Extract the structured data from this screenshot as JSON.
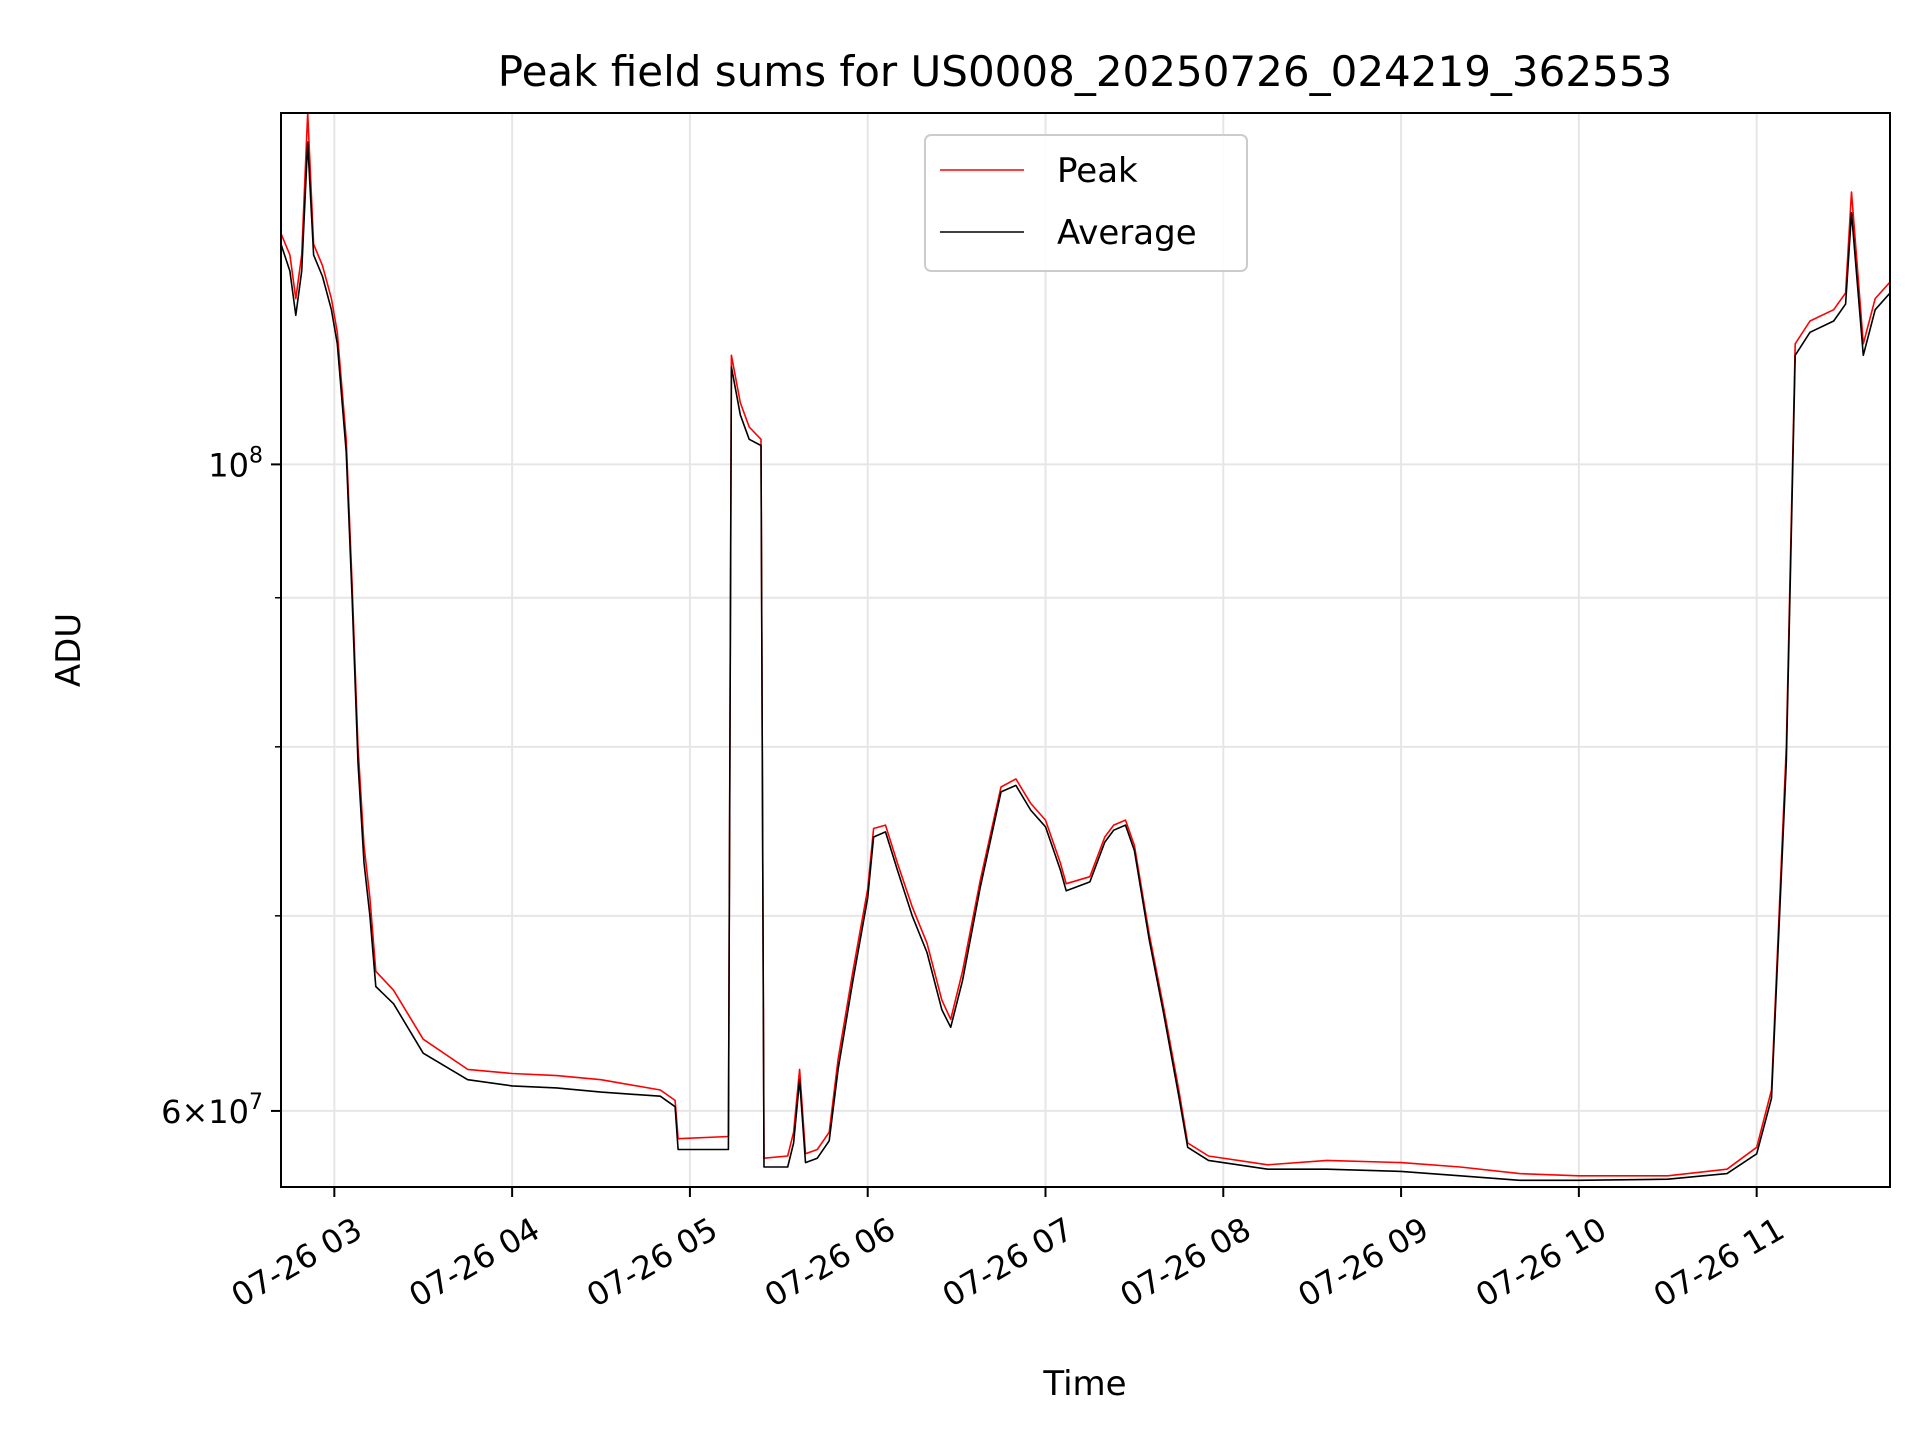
{
  "chart_data": {
    "type": "line",
    "title": "Peak field sums for US0008_20250726_024219_362553",
    "xlabel": "Time",
    "ylabel": "ADU",
    "y_scale": "log",
    "ylim": [
      56500000,
      132000000
    ],
    "xlim": [
      "07-26 02:42",
      "07-26 11:45"
    ],
    "x_ticks": [
      {
        "t": "07-26 03:00",
        "label": "07-26 03"
      },
      {
        "t": "07-26 04:00",
        "label": "07-26 04"
      },
      {
        "t": "07-26 05:00",
        "label": "07-26 05"
      },
      {
        "t": "07-26 06:00",
        "label": "07-26 06"
      },
      {
        "t": "07-26 07:00",
        "label": "07-26 07"
      },
      {
        "t": "07-26 08:00",
        "label": "07-26 08"
      },
      {
        "t": "07-26 09:00",
        "label": "07-26 09"
      },
      {
        "t": "07-26 10:00",
        "label": "07-26 10"
      },
      {
        "t": "07-26 11:00",
        "label": "07-26 11"
      }
    ],
    "y_ticks": [
      {
        "value": 60000000,
        "base": "6×10",
        "exp": "7"
      },
      {
        "value": 100000000,
        "base": "10",
        "exp": "8"
      }
    ],
    "y_minor_ticks": [
      70000000,
      80000000,
      90000000
    ],
    "grid": true,
    "legend": {
      "position": "top-center",
      "entries": [
        "Peak",
        "Average"
      ]
    },
    "series": [
      {
        "name": "Peak",
        "color": "#ff0000",
        "points": [
          [
            "07-26 02:42",
            120000000
          ],
          [
            "07-26 02:45",
            118000000
          ],
          [
            "07-26 02:47",
            114000000
          ],
          [
            "07-26 02:49",
            118000000
          ],
          [
            "07-26 02:51",
            132000000
          ],
          [
            "07-26 02:53",
            119000000
          ],
          [
            "07-26 02:56",
            117000000
          ],
          [
            "07-26 02:59",
            114000000
          ],
          [
            "07-26 03:01",
            111000000
          ],
          [
            "07-26 03:04",
            102000000
          ],
          [
            "07-26 03:06",
            91000000
          ],
          [
            "07-26 03:08",
            80000000
          ],
          [
            "07-26 03:10",
            74000000
          ],
          [
            "07-26 03:12",
            71000000
          ],
          [
            "07-26 03:14",
            67000000
          ],
          [
            "07-26 03:20",
            66000000
          ],
          [
            "07-26 03:30",
            63500000
          ],
          [
            "07-26 03:45",
            62000000
          ],
          [
            "07-26 04:00",
            61800000
          ],
          [
            "07-26 04:15",
            61700000
          ],
          [
            "07-26 04:30",
            61500000
          ],
          [
            "07-26 04:50",
            61000000
          ],
          [
            "07-26 04:55",
            60500000
          ],
          [
            "07-26 04:56",
            58700000
          ],
          [
            "07-26 05:13",
            58800000
          ],
          [
            "07-26 05:14",
            109000000
          ],
          [
            "07-26 05:17",
            105000000
          ],
          [
            "07-26 05:20",
            103000000
          ],
          [
            "07-26 05:24",
            102000000
          ],
          [
            "07-26 05:25",
            57800000
          ],
          [
            "07-26 05:33",
            57900000
          ],
          [
            "07-26 05:35",
            59000000
          ],
          [
            "07-26 05:37",
            62000000
          ],
          [
            "07-26 05:39",
            58000000
          ],
          [
            "07-26 05:43",
            58200000
          ],
          [
            "07-26 05:47",
            59000000
          ],
          [
            "07-26 05:50",
            62500000
          ],
          [
            "07-26 05:55",
            67000000
          ],
          [
            "07-26 06:00",
            71500000
          ],
          [
            "07-26 06:02",
            75000000
          ],
          [
            "07-26 06:06",
            75200000
          ],
          [
            "07-26 06:10",
            73000000
          ],
          [
            "07-26 06:15",
            70500000
          ],
          [
            "07-26 06:20",
            68500000
          ],
          [
            "07-26 06:25",
            65500000
          ],
          [
            "07-26 06:28",
            64500000
          ],
          [
            "07-26 06:32",
            67000000
          ],
          [
            "07-26 06:38",
            72000000
          ],
          [
            "07-26 06:45",
            77500000
          ],
          [
            "07-26 06:50",
            78000000
          ],
          [
            "07-26 06:55",
            76500000
          ],
          [
            "07-26 07:00",
            75500000
          ],
          [
            "07-26 07:05",
            73000000
          ],
          [
            "07-26 07:07",
            71800000
          ],
          [
            "07-26 07:15",
            72200000
          ],
          [
            "07-26 07:20",
            74500000
          ],
          [
            "07-26 07:23",
            75200000
          ],
          [
            "07-26 07:27",
            75500000
          ],
          [
            "07-26 07:30",
            74000000
          ],
          [
            "07-26 07:35",
            69000000
          ],
          [
            "07-26 07:40",
            65000000
          ],
          [
            "07-26 07:45",
            61000000
          ],
          [
            "07-26 07:48",
            58500000
          ],
          [
            "07-26 07:55",
            57900000
          ],
          [
            "07-26 08:15",
            57500000
          ],
          [
            "07-26 08:35",
            57700000
          ],
          [
            "07-26 09:00",
            57600000
          ],
          [
            "07-26 09:20",
            57400000
          ],
          [
            "07-26 09:40",
            57100000
          ],
          [
            "07-26 10:00",
            57000000
          ],
          [
            "07-26 10:30",
            57000000
          ],
          [
            "07-26 10:50",
            57300000
          ],
          [
            "07-26 11:00",
            58300000
          ],
          [
            "07-26 11:05",
            61000000
          ],
          [
            "07-26 11:10",
            80000000
          ],
          [
            "07-26 11:13",
            110000000
          ],
          [
            "07-26 11:18",
            112000000
          ],
          [
            "07-26 11:26",
            113000000
          ],
          [
            "07-26 11:30",
            114500000
          ],
          [
            "07-26 11:32",
            124000000
          ],
          [
            "07-26 11:36",
            110000000
          ],
          [
            "07-26 11:40",
            114000000
          ],
          [
            "07-26 11:45",
            115500000
          ]
        ]
      },
      {
        "name": "Average",
        "color": "#000000",
        "points": [
          [
            "07-26 02:42",
            119000000
          ],
          [
            "07-26 02:45",
            116500000
          ],
          [
            "07-26 02:47",
            112500000
          ],
          [
            "07-26 02:49",
            116500000
          ],
          [
            "07-26 02:51",
            129000000
          ],
          [
            "07-26 02:53",
            118000000
          ],
          [
            "07-26 02:56",
            116000000
          ],
          [
            "07-26 02:59",
            113000000
          ],
          [
            "07-26 03:01",
            110000000
          ],
          [
            "07-26 03:04",
            101000000
          ],
          [
            "07-26 03:06",
            90000000
          ],
          [
            "07-26 03:08",
            79000000
          ],
          [
            "07-26 03:10",
            73000000
          ],
          [
            "07-26 03:12",
            70000000
          ],
          [
            "07-26 03:14",
            66200000
          ],
          [
            "07-26 03:20",
            65300000
          ],
          [
            "07-26 03:30",
            62800000
          ],
          [
            "07-26 03:45",
            61500000
          ],
          [
            "07-26 04:00",
            61200000
          ],
          [
            "07-26 04:15",
            61100000
          ],
          [
            "07-26 04:30",
            60900000
          ],
          [
            "07-26 04:50",
            60700000
          ],
          [
            "07-26 04:55",
            60200000
          ],
          [
            "07-26 04:56",
            58200000
          ],
          [
            "07-26 05:13",
            58200000
          ],
          [
            "07-26 05:14",
            108000000
          ],
          [
            "07-26 05:17",
            104000000
          ],
          [
            "07-26 05:20",
            102000000
          ],
          [
            "07-26 05:24",
            101500000
          ],
          [
            "07-26 05:25",
            57400000
          ],
          [
            "07-26 05:33",
            57400000
          ],
          [
            "07-26 05:35",
            58500000
          ],
          [
            "07-26 05:37",
            61500000
          ],
          [
            "07-26 05:39",
            57600000
          ],
          [
            "07-26 05:43",
            57800000
          ],
          [
            "07-26 05:47",
            58600000
          ],
          [
            "07-26 05:50",
            62000000
          ],
          [
            "07-26 05:55",
            66500000
          ],
          [
            "07-26 06:00",
            71000000
          ],
          [
            "07-26 06:02",
            74500000
          ],
          [
            "07-26 06:06",
            74800000
          ],
          [
            "07-26 06:10",
            72600000
          ],
          [
            "07-26 06:15",
            70000000
          ],
          [
            "07-26 06:20",
            68000000
          ],
          [
            "07-26 06:25",
            65000000
          ],
          [
            "07-26 06:28",
            64100000
          ],
          [
            "07-26 06:32",
            66500000
          ],
          [
            "07-26 06:38",
            71600000
          ],
          [
            "07-26 06:45",
            77200000
          ],
          [
            "07-26 06:50",
            77600000
          ],
          [
            "07-26 06:55",
            76100000
          ],
          [
            "07-26 07:00",
            75100000
          ],
          [
            "07-26 07:05",
            72600000
          ],
          [
            "07-26 07:07",
            71400000
          ],
          [
            "07-26 07:15",
            71900000
          ],
          [
            "07-26 07:20",
            74200000
          ],
          [
            "07-26 07:23",
            74900000
          ],
          [
            "07-26 07:27",
            75200000
          ],
          [
            "07-26 07:30",
            73700000
          ],
          [
            "07-26 07:35",
            68700000
          ],
          [
            "07-26 07:40",
            64700000
          ],
          [
            "07-26 07:45",
            60700000
          ],
          [
            "07-26 07:48",
            58300000
          ],
          [
            "07-26 07:55",
            57700000
          ],
          [
            "07-26 08:15",
            57300000
          ],
          [
            "07-26 08:35",
            57300000
          ],
          [
            "07-26 09:00",
            57200000
          ],
          [
            "07-26 09:20",
            57000000
          ],
          [
            "07-26 09:40",
            56800000
          ],
          [
            "07-26 10:00",
            56800000
          ],
          [
            "07-26 10:30",
            56850000
          ],
          [
            "07-26 10:50",
            57100000
          ],
          [
            "07-26 11:00",
            58000000
          ],
          [
            "07-26 11:05",
            60600000
          ],
          [
            "07-26 11:10",
            79000000
          ],
          [
            "07-26 11:13",
            109000000
          ],
          [
            "07-26 11:18",
            111000000
          ],
          [
            "07-26 11:26",
            112000000
          ],
          [
            "07-26 11:30",
            113500000
          ],
          [
            "07-26 11:32",
            122000000
          ],
          [
            "07-26 11:36",
            109000000
          ],
          [
            "07-26 11:40",
            113000000
          ],
          [
            "07-26 11:45",
            114500000
          ]
        ]
      }
    ]
  }
}
